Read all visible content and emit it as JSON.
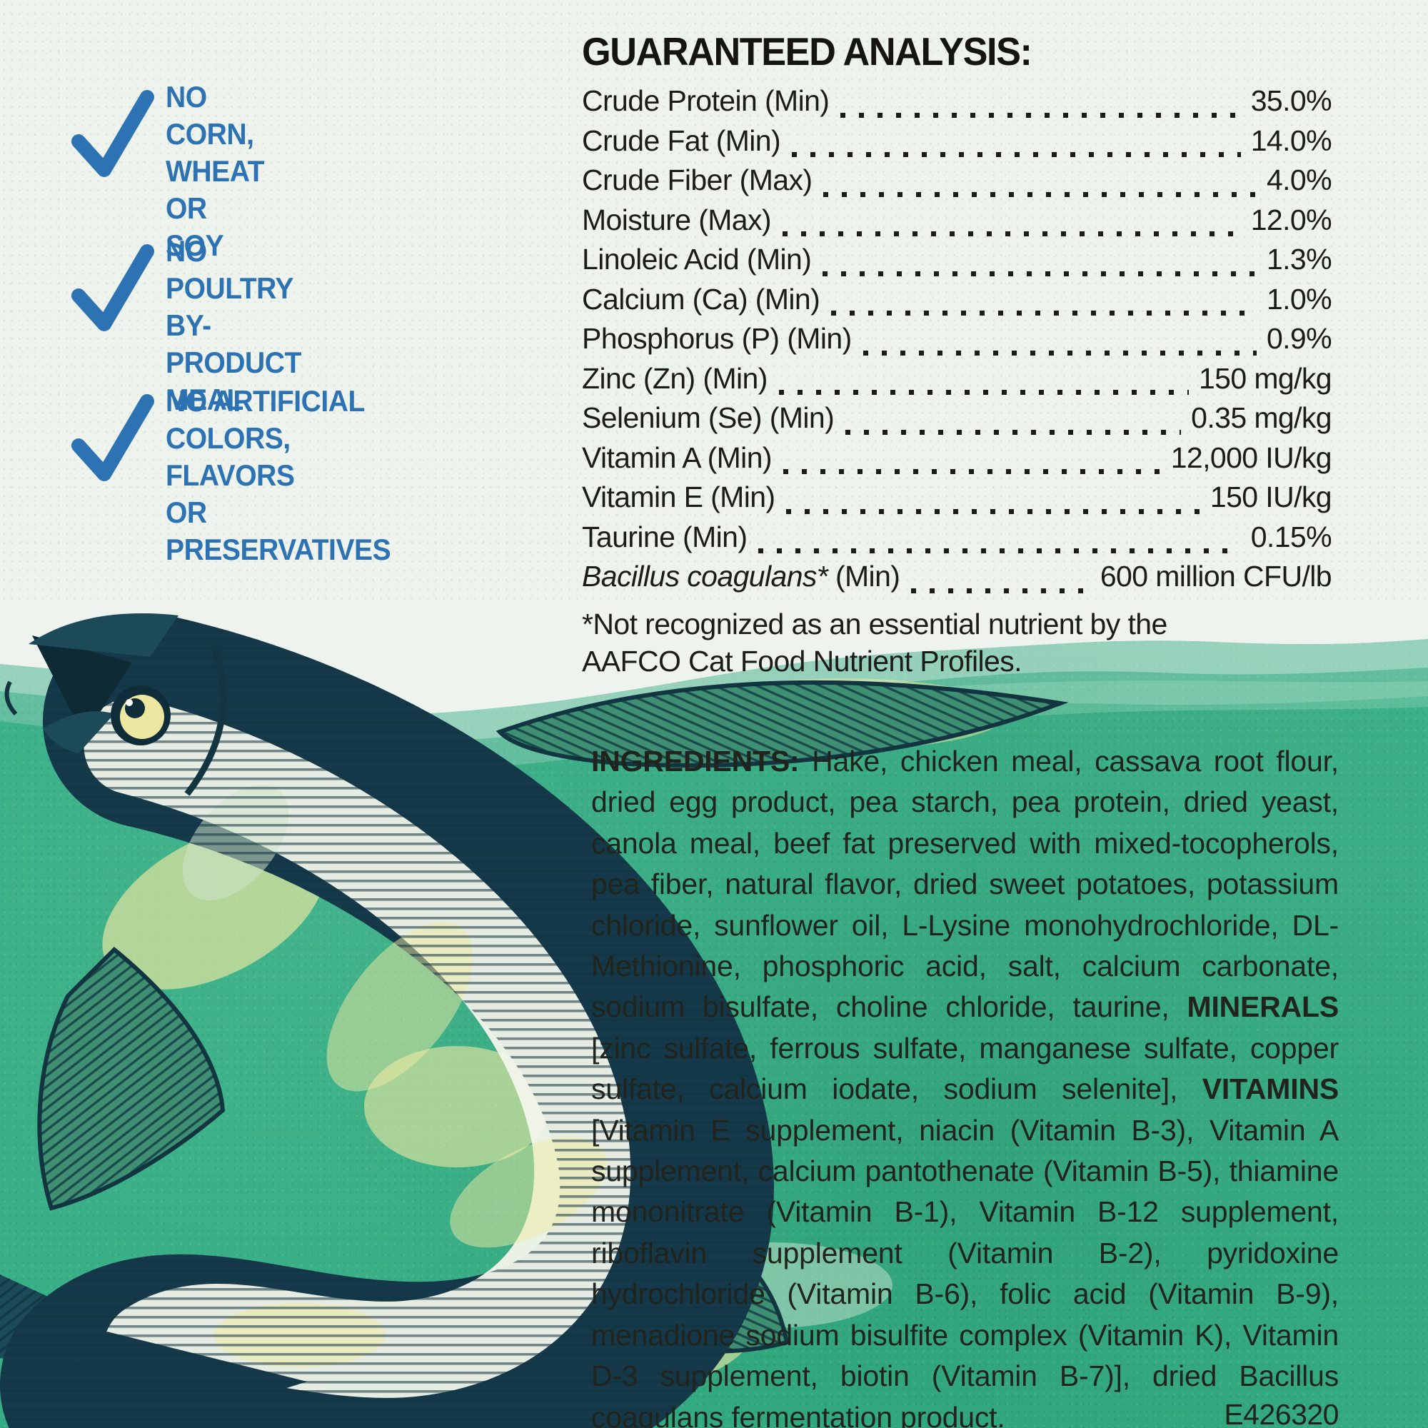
{
  "colors": {
    "paper": "#eff3ee",
    "water_green": "#35ae84",
    "badge_blue": "#2d73b3",
    "ink": "#1b1b17",
    "fish_dark": "#14384a",
    "fish_belly": "#f2f5ea",
    "fish_yellow": "#f0eaa2"
  },
  "badges": [
    {
      "lines": "NO CORN,\nWHEAT\nOR SOY"
    },
    {
      "lines": "NO POULTRY\nBY-PRODUCT\nMEAL"
    },
    {
      "lines": "NO ARTIFICIAL\nCOLORS, FLAVORS\nOR PRESERVATIVES"
    }
  ],
  "guaranteed_analysis": {
    "title": "GUARANTEED ANALYSIS:",
    "rows": [
      {
        "label": "Crude Protein (Min)",
        "value": "35.0%"
      },
      {
        "label": "Crude Fat (Min)",
        "value": "14.0%"
      },
      {
        "label": "Crude Fiber (Max)",
        "value": "4.0%"
      },
      {
        "label": "Moisture (Max)",
        "value": "12.0%"
      },
      {
        "label": "Linoleic Acid (Min)",
        "value": "1.3%"
      },
      {
        "label": "Calcium (Ca) (Min)",
        "value": "1.0%"
      },
      {
        "label": "Phosphorus (P) (Min)",
        "value": "0.9%"
      },
      {
        "label": "Zinc (Zn) (Min)",
        "value": "150 mg/kg"
      },
      {
        "label": "Selenium (Se) (Min)",
        "value": "0.35 mg/kg"
      },
      {
        "label": "Vitamin A (Min)",
        "value": "12,000 IU/kg"
      },
      {
        "label": "Vitamin E (Min)",
        "value": "150 IU/kg"
      },
      {
        "label": "Taurine (Min)",
        "value": "0.15%"
      },
      {
        "label_italic": "Bacillus coagulans*",
        "label": " (Min)",
        "value": "600 million CFU/lb"
      }
    ],
    "footnote": "*Not recognized as an essential nutrient by the\nAAFCO Cat Food Nutrient Profiles."
  },
  "ingredients": {
    "segments": [
      {
        "text": "INGREDIENTS:",
        "bold": true
      },
      {
        "text": " Hake, chicken meal, cassava root flour, dried egg product, pea starch, pea protein, dried yeast, canola meal, beef fat preserved with mixed-tocopherols, pea fiber, natural flavor, dried sweet potatoes, potassium chloride, sunflower oil, L-Lysine monohydrochloride, DL-Methionine, phosphoric acid, salt, calcium carbonate, sodium bisulfate, choline chloride, taurine, ",
        "bold": false
      },
      {
        "text": "MINERALS",
        "bold": true
      },
      {
        "text": " [zinc sulfate, ferrous sulfate, manganese sulfate, copper sulfate, calcium iodate, sodium selenite], ",
        "bold": false
      },
      {
        "text": "VITAMINS",
        "bold": true
      },
      {
        "text": " [Vitamin E supplement, niacin (Vitamin B-3), Vitamin A supplement, calcium pantothenate (Vitamin B-5), thiamine mononitrate (Vitamin B-1), Vitamin B-12 supplement, riboflavin supplement (Vitamin B-2), pyridoxine hydrochloride (Vitamin B-6), folic acid (Vitamin B-9), menadione sodium bisulfite complex (Vitamin K), Vitamin D-3 supplement, biotin (Vitamin B-7)], dried Bacillus coagulans fermentation product.",
        "bold": false
      }
    ],
    "code": "E426320"
  },
  "illustration": {
    "name": "hake-fish-engraving"
  }
}
